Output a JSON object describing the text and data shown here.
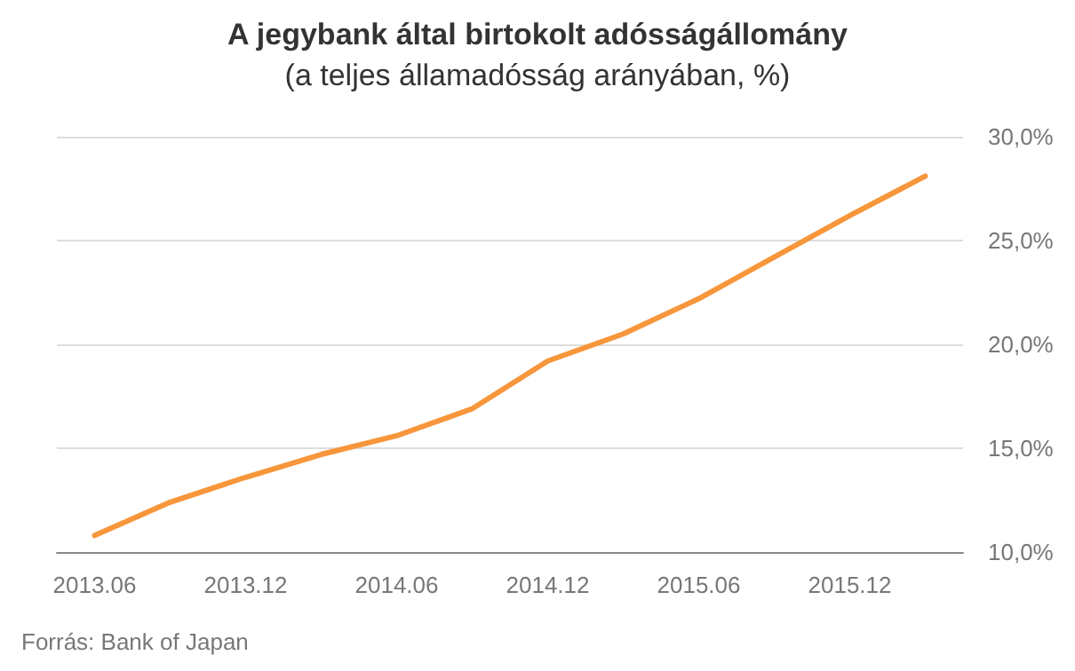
{
  "chart_data": {
    "type": "line",
    "title": "A jegybank által birtokolt adósságállomány",
    "subtitle": "(a teljes államadósság arányában, %)",
    "categories": [
      "2013.06",
      null,
      "2013.12",
      null,
      "2014.06",
      null,
      "2014.12",
      null,
      "2015.06",
      null,
      "2015.12",
      null
    ],
    "series": [
      {
        "color": "#f7963b",
        "values": [
          10.8,
          12.4,
          13.6,
          14.7,
          15.6,
          16.9,
          19.2,
          20.5,
          22.2,
          24.2,
          26.2,
          28.1
        ]
      }
    ],
    "ylim": [
      10,
      30
    ],
    "yticks": [
      {
        "value": 10,
        "label": "10,0%"
      },
      {
        "value": 15,
        "label": "15,0%"
      },
      {
        "value": 20,
        "label": "20,0%"
      },
      {
        "value": 25,
        "label": "25,0%"
      },
      {
        "value": 30,
        "label": "30,0%"
      }
    ],
    "grid": "y",
    "marker": "none",
    "line_style": "solid",
    "annotations": [
      "Forrás: Bank of Japan"
    ]
  }
}
